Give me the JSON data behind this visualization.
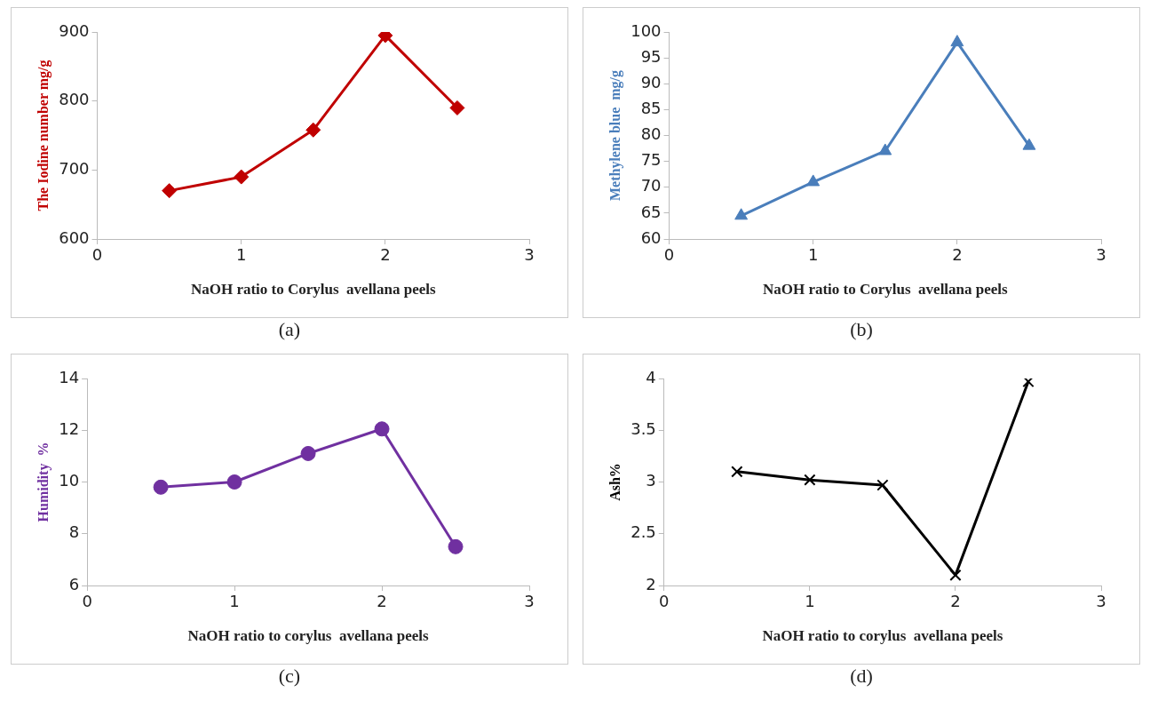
{
  "chart_data": [
    {
      "type": "line",
      "xlabel": "NaOH ratio to Corylus  avellana peels",
      "ylabel": "The Iodine number mg/g",
      "x": [
        0.5,
        1,
        1.5,
        2,
        2.5
      ],
      "series": [
        {
          "color": "#c00000",
          "values": [
            670,
            690,
            758,
            895,
            790
          ]
        }
      ],
      "xlim": [
        0,
        3
      ],
      "xticks": [
        0,
        1,
        2,
        3
      ],
      "ylim": [
        600,
        900
      ],
      "yticks": [
        600,
        700,
        800,
        900
      ],
      "grid": false,
      "legend": false,
      "marker": "diamond",
      "annotations": [
        "(a)"
      ]
    },
    {
      "type": "line",
      "xlabel": "NaOH ratio to Corylus  avellana peels",
      "ylabel": "Methylene blue  mg/g",
      "x": [
        0.5,
        1,
        1.5,
        2,
        2.5
      ],
      "series": [
        {
          "color": "#4a7ebb",
          "values": [
            64.5,
            71,
            77,
            98,
            78
          ]
        }
      ],
      "xlim": [
        0,
        3
      ],
      "xticks": [
        0,
        1,
        2,
        3
      ],
      "ylim": [
        60,
        100
      ],
      "yticks": [
        60,
        65,
        70,
        75,
        80,
        85,
        90,
        95,
        100
      ],
      "grid": false,
      "legend": false,
      "marker": "triangle",
      "annotations": [
        "(b)"
      ]
    },
    {
      "type": "line",
      "xlabel": "NaOH ratio to corylus  avellana peels",
      "ylabel": "Humidity  %",
      "x": [
        0.5,
        1,
        1.5,
        2,
        2.5
      ],
      "series": [
        {
          "color": "#7030a0",
          "values": [
            9.8,
            10,
            11.1,
            12.05,
            7.5
          ]
        }
      ],
      "xlim": [
        0,
        3
      ],
      "xticks": [
        0,
        1,
        2,
        3
      ],
      "ylim": [
        6,
        14
      ],
      "yticks": [
        6,
        8,
        10,
        12,
        14
      ],
      "grid": false,
      "legend": false,
      "marker": "circle",
      "annotations": [
        "(c)"
      ]
    },
    {
      "type": "line",
      "xlabel": "NaOH ratio to corylus  avellana peels",
      "ylabel": "Ash%",
      "x": [
        0.5,
        1,
        1.5,
        2,
        2.5
      ],
      "series": [
        {
          "color": "#000000",
          "values": [
            3.1,
            3.02,
            2.97,
            2.1,
            3.97
          ]
        }
      ],
      "xlim": [
        0,
        3
      ],
      "xticks": [
        0,
        1,
        2,
        3
      ],
      "ylim": [
        2,
        4
      ],
      "yticks": [
        2,
        2.5,
        3,
        3.5,
        4
      ],
      "grid": false,
      "legend": false,
      "marker": "cross",
      "annotations": [
        "(d)"
      ]
    }
  ]
}
